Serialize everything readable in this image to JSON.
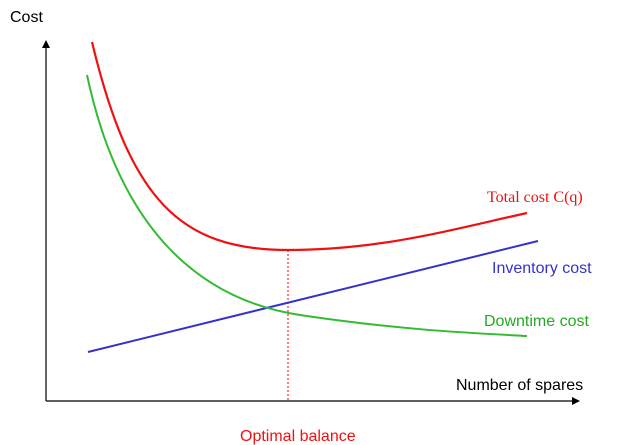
{
  "y_axis_label": "Cost",
  "x_axis_label": "Number of spares",
  "curves": [
    {
      "label": "Total cost C(q)"
    },
    {
      "label": "Inventory cost"
    },
    {
      "label": "Downtime cost"
    }
  ],
  "annotation": "Optimal balance"
}
